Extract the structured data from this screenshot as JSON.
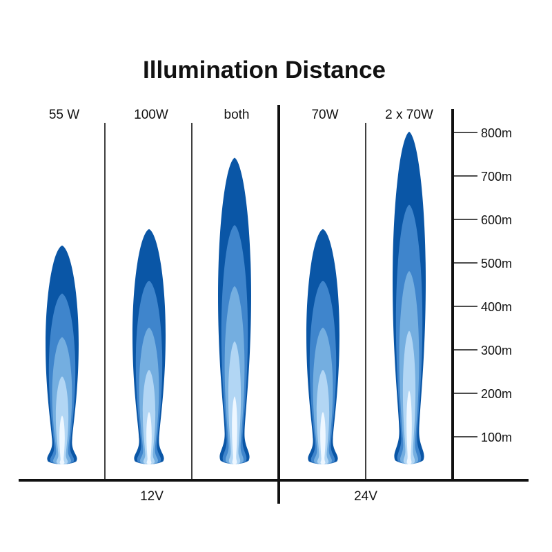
{
  "colors": {
    "levels": [
      "#0a56a6",
      "#3f85cc",
      "#74aee0",
      "#b2d6f4",
      "#eef7ff"
    ],
    "axis": "#111111",
    "background": "#ffffff"
  },
  "chart_data": {
    "type": "bar",
    "title": "Illumination Distance",
    "categories": [
      "55 W",
      "100W",
      "both",
      "70W",
      "2 x 70W"
    ],
    "values": [
      540,
      578,
      742,
      578,
      802
    ],
    "groups": [
      {
        "label": "12V",
        "categories": [
          "55 W",
          "100W",
          "both"
        ]
      },
      {
        "label": "24V",
        "categories": [
          "70W",
          "2 x 70W"
        ]
      }
    ],
    "y_ticks": [
      {
        "value": 100,
        "label": "100m"
      },
      {
        "value": 200,
        "label": "200m"
      },
      {
        "value": 300,
        "label": "300m"
      },
      {
        "value": 400,
        "label": "400m"
      },
      {
        "value": 500,
        "label": "500m"
      },
      {
        "value": 600,
        "label": "600m"
      },
      {
        "value": 700,
        "label": "700m"
      },
      {
        "value": 800,
        "label": "800m"
      }
    ],
    "ylim": [
      0,
      830
    ],
    "ylabel": "",
    "xlabel": "",
    "grid": false,
    "legend": "none"
  }
}
